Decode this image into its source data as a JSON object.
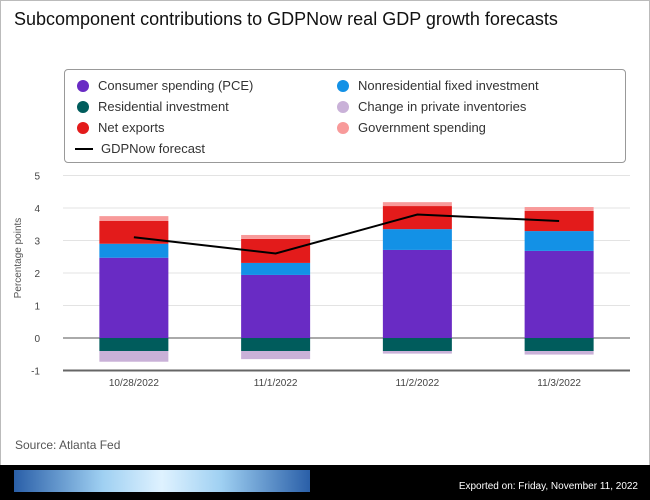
{
  "chart_data": {
    "type": "bar",
    "title": "Subcomponent contributions to GDPNow real GDP growth forecasts",
    "ylabel": "Percentage points",
    "xlabel": "",
    "ylim": [
      -1,
      5
    ],
    "yticks": [
      -1,
      0,
      1,
      2,
      3,
      4,
      5
    ],
    "categories": [
      "10/28/2022",
      "11/1/2022",
      "11/2/2022",
      "11/3/2022"
    ],
    "series": [
      {
        "name": "Consumer spending (PCE)",
        "color": "#692bc4",
        "values": [
          2.47,
          1.94,
          2.71,
          2.68
        ]
      },
      {
        "name": "Nonresidential fixed investment",
        "color": "#1391e6",
        "values": [
          0.43,
          0.37,
          0.64,
          0.61
        ]
      },
      {
        "name": "Residential investment",
        "color": "#005c5c",
        "values": [
          -0.4,
          -0.4,
          -0.4,
          -0.4
        ]
      },
      {
        "name": "Change in private inventories",
        "color": "#c9b1d8",
        "values": [
          -0.33,
          -0.25,
          -0.08,
          -0.11
        ]
      },
      {
        "name": "Net exports",
        "color": "#e31b1b",
        "values": [
          0.7,
          0.74,
          0.71,
          0.62
        ]
      },
      {
        "name": "Government spending",
        "color": "#f89a9a",
        "values": [
          0.15,
          0.12,
          0.12,
          0.12
        ]
      }
    ],
    "line": {
      "name": "GDPNow forecast",
      "color": "#000000",
      "values": [
        3.1,
        2.6,
        3.8,
        3.6
      ]
    },
    "grid": true,
    "legend_position": "top"
  },
  "source": "Source: Atlanta Fed",
  "exported": "Exported on: Friday, November 11, 2022"
}
